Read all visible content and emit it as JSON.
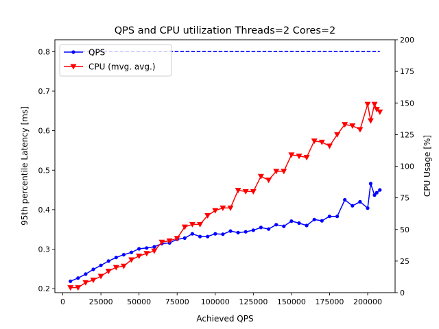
{
  "chart_data": {
    "type": "line",
    "title": "QPS and CPU utilization Threads=2 Cores=2",
    "xlabel": "Achieved QPS",
    "ylabel_left": "95th percentile Latency [ms]",
    "ylabel_right": "CPU Usage [%]",
    "xlim": [
      -5200,
      218000
    ],
    "ylim_left": [
      0.19,
      0.83
    ],
    "ylim_right": [
      0,
      200
    ],
    "x_ticks": [
      0,
      25000,
      50000,
      75000,
      100000,
      125000,
      150000,
      175000,
      200000
    ],
    "x_tick_labels": [
      "0",
      "25000",
      "50000",
      "75000",
      "100000",
      "125000",
      "150000",
      "175000",
      "200000"
    ],
    "y_left_ticks": [
      0.2,
      0.3,
      0.4,
      0.5,
      0.6,
      0.7,
      0.8
    ],
    "y_left_tick_labels": [
      "0.2",
      "0.3",
      "0.4",
      "0.5",
      "0.6",
      "0.7",
      "0.8"
    ],
    "y_right_ticks": [
      0,
      25,
      50,
      75,
      100,
      125,
      150,
      175,
      200
    ],
    "y_right_tick_labels": [
      "0",
      "25",
      "50",
      "75",
      "100",
      "125",
      "150",
      "175",
      "200"
    ],
    "legend_position": "top-left",
    "grid": false,
    "series": [
      {
        "name": "QPS",
        "axis": "left",
        "color": "#0000ff",
        "marker": "circle",
        "x": [
          5000,
          10000,
          15000,
          20000,
          25000,
          30000,
          35000,
          40000,
          45000,
          50000,
          55000,
          60000,
          65000,
          70000,
          75000,
          80000,
          85000,
          90000,
          95000,
          100000,
          105000,
          110000,
          115000,
          120000,
          125000,
          130000,
          135000,
          140000,
          145000,
          150000,
          155000,
          160000,
          165000,
          170000,
          175000,
          180000,
          185000,
          190000,
          195000,
          200000,
          202000,
          204500,
          206000,
          208000
        ],
        "y": [
          0.219,
          0.227,
          0.237,
          0.249,
          0.259,
          0.27,
          0.279,
          0.286,
          0.292,
          0.301,
          0.303,
          0.306,
          0.314,
          0.316,
          0.325,
          0.328,
          0.339,
          0.332,
          0.332,
          0.339,
          0.338,
          0.346,
          0.342,
          0.344,
          0.348,
          0.355,
          0.351,
          0.362,
          0.358,
          0.371,
          0.366,
          0.36,
          0.375,
          0.372,
          0.383,
          0.383,
          0.425,
          0.41,
          0.42,
          0.404,
          0.466,
          0.437,
          0.443,
          0.45
        ]
      },
      {
        "name": "CPU (mvg. avg.)",
        "axis": "right",
        "color": "#ff0000",
        "marker": "triangle-down",
        "x": [
          5000,
          10000,
          15000,
          20000,
          25000,
          30000,
          35000,
          40000,
          45000,
          50000,
          55000,
          60000,
          65000,
          70000,
          75000,
          80000,
          85000,
          90000,
          95000,
          100000,
          105000,
          110000,
          115000,
          120000,
          125000,
          130000,
          135000,
          140000,
          145000,
          150000,
          155000,
          160000,
          165000,
          170000,
          175000,
          180000,
          185000,
          190000,
          195000,
          200000,
          202000,
          204500,
          206000,
          208000
        ],
        "y": [
          4,
          4,
          8,
          10,
          13,
          17,
          20,
          21,
          26,
          29,
          31,
          33,
          40,
          41,
          43,
          52,
          54,
          54,
          61,
          65,
          67,
          67,
          81,
          80,
          80,
          92,
          89,
          96,
          96,
          109,
          108,
          107,
          120,
          119,
          116,
          125,
          133,
          132,
          129,
          149,
          136,
          149,
          145,
          143
        ]
      },
      {
        "name": "",
        "axis": "left",
        "color": "#0000ff",
        "style": "dashed",
        "x": [
          5000,
          208000
        ],
        "y": [
          0.8,
          0.8
        ]
      }
    ]
  }
}
